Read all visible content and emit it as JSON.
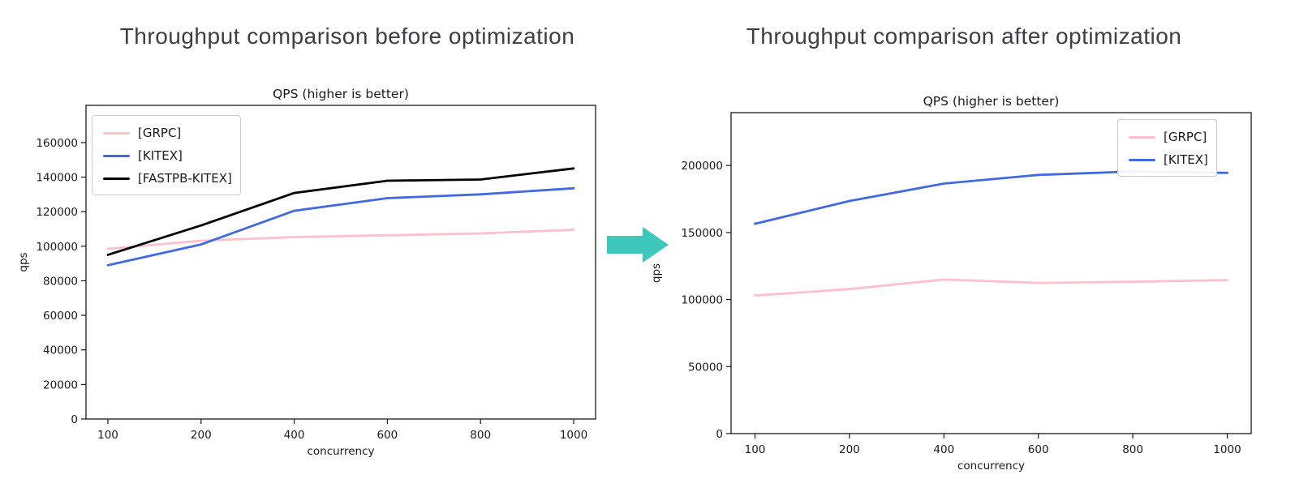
{
  "headings": {
    "before": "Throughput comparison before optimization",
    "after": "Throughput comparison after optimization"
  },
  "arrow": {
    "icon": "right-block-arrow",
    "color": "#3ec8bc"
  },
  "chart_data": [
    {
      "id": "before",
      "type": "line",
      "title": "QPS (higher is better)",
      "xlabel": "concurrency",
      "ylabel": "qps",
      "categories": [
        100,
        200,
        400,
        600,
        800,
        1000
      ],
      "series": [
        {
          "name": "[GRPC]",
          "color": "#ffc0cb",
          "values": [
            98500,
            103200,
            105300,
            106300,
            107400,
            109500
          ]
        },
        {
          "name": "[KITEX]",
          "color": "#4169e1",
          "values": [
            89000,
            101000,
            120500,
            127800,
            130000,
            133500
          ]
        },
        {
          "name": "[FASTPB-KITEX]",
          "color": "#000000",
          "values": [
            95000,
            112000,
            130800,
            137900,
            138600,
            145000
          ]
        }
      ],
      "yticks": [
        0,
        20000,
        40000,
        60000,
        80000,
        100000,
        120000,
        140000,
        160000
      ],
      "ylim": [
        0,
        181500
      ],
      "xlim_style": "categorical-even",
      "grid": false,
      "legend_position": "upper-left"
    },
    {
      "id": "after",
      "type": "line",
      "title": "QPS (higher is better)",
      "xlabel": "concurrency",
      "ylabel": "qps",
      "categories": [
        100,
        200,
        400,
        600,
        800,
        1000
      ],
      "series": [
        {
          "name": "[GRPC]",
          "color": "#ffc0cb",
          "values": [
            103000,
            107800,
            114900,
            112400,
            113300,
            114500
          ]
        },
        {
          "name": "[KITEX]",
          "color": "#4169e1",
          "values": [
            156500,
            173500,
            186500,
            193000,
            195500,
            194500
          ]
        }
      ],
      "yticks": [
        0,
        50000,
        100000,
        150000,
        200000
      ],
      "ylim": [
        0,
        239400
      ],
      "xlim_style": "categorical-even",
      "grid": false,
      "legend_position": "upper-right"
    }
  ]
}
